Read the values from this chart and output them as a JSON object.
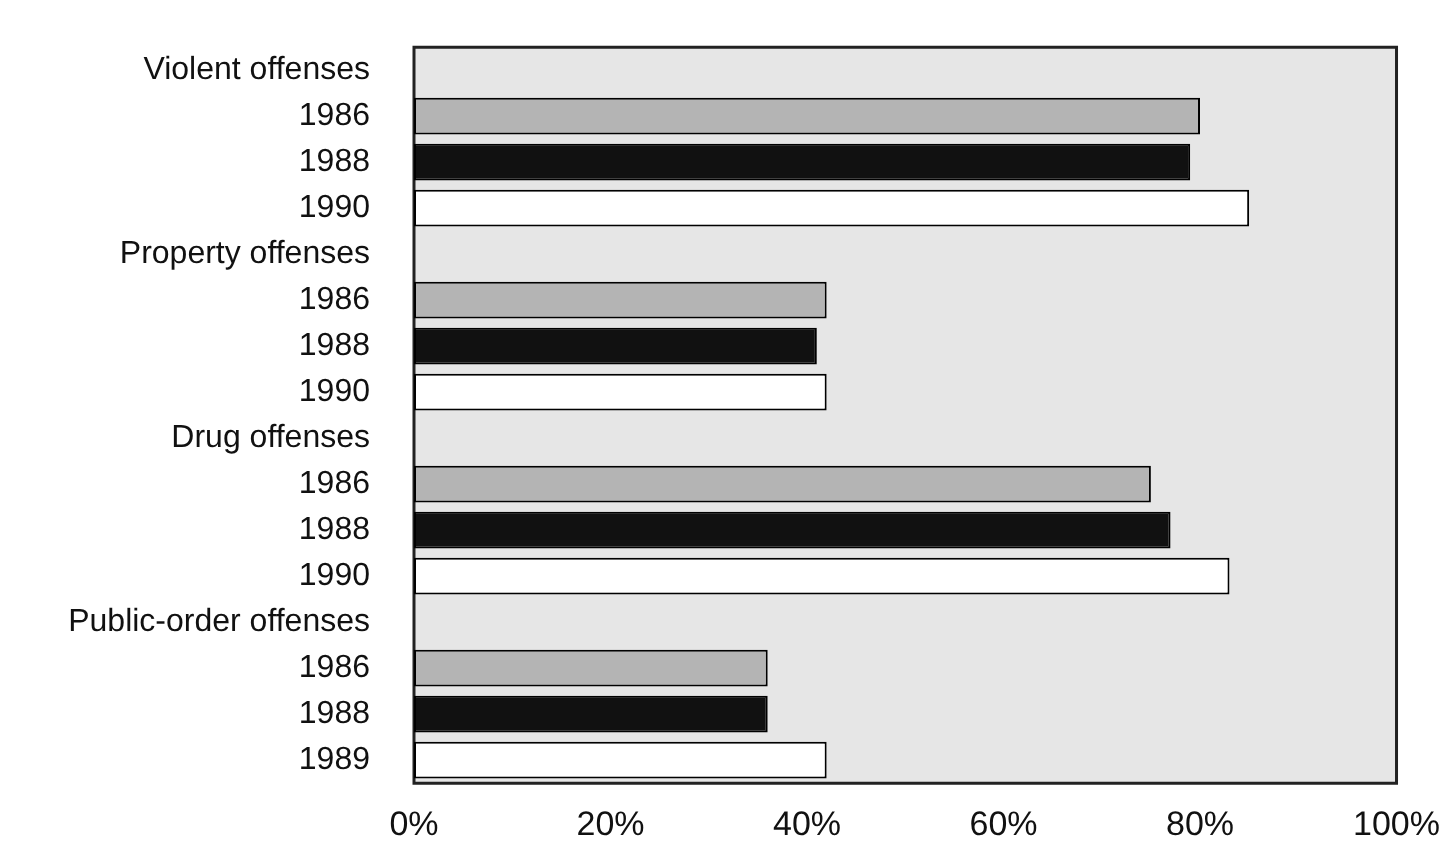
{
  "chart_data": {
    "type": "bar",
    "orientation": "horizontal",
    "categories": [
      "Violent offenses",
      "1986",
      "1988",
      "1990",
      "Property offenses",
      "1986",
      "1988",
      "1990",
      "Drug offenses",
      "1986",
      "1988",
      "1990",
      "Public-order offenses",
      "1986",
      "1988",
      "1989"
    ],
    "values": [
      null,
      80,
      79,
      85,
      null,
      42,
      41,
      42,
      null,
      75,
      77,
      83,
      null,
      36,
      36,
      42
    ],
    "colors": [
      null,
      "#b4b4b4",
      "#111111",
      "#ffffff",
      null,
      "#b4b4b4",
      "#111111",
      "#ffffff",
      null,
      "#b4b4b4",
      "#111111",
      "#ffffff",
      null,
      "#b4b4b4",
      "#111111",
      "#ffffff"
    ],
    "xlim": [
      0,
      100
    ],
    "xticks": [
      {
        "value": 0,
        "label": "0%"
      },
      {
        "value": 20,
        "label": "20%"
      },
      {
        "value": 40,
        "label": "40%"
      },
      {
        "value": 60,
        "label": "60%"
      },
      {
        "value": 80,
        "label": "80%"
      },
      {
        "value": 100,
        "label": "100%"
      }
    ],
    "grid": false,
    "legend": false
  }
}
